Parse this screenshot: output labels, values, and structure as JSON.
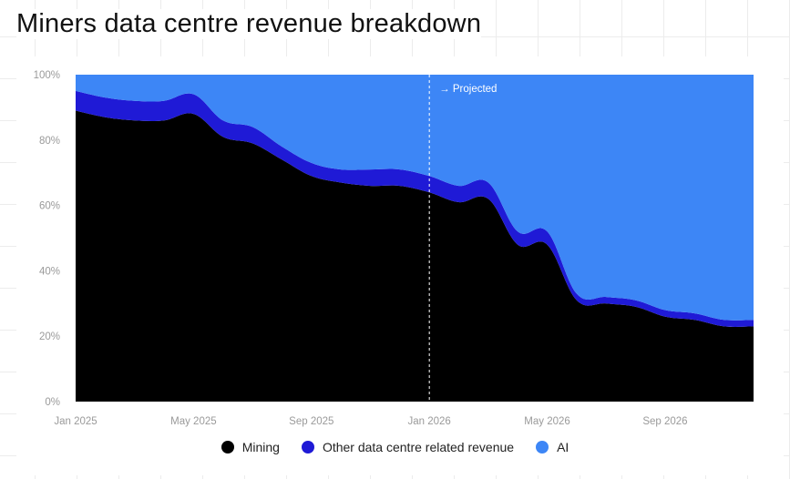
{
  "title": "Miners data centre revenue breakdown",
  "annotation": "→ Projected",
  "colors": {
    "mining": "#000000",
    "other": "#1f1ad6",
    "ai": "#3d86f6"
  },
  "chart_data": {
    "type": "area",
    "stacked": true,
    "normalized": true,
    "title": "Miners data centre revenue breakdown",
    "ylim": [
      0,
      100
    ],
    "y_ticks": [
      "0%",
      "20%",
      "40%",
      "60%",
      "80%",
      "100%"
    ],
    "x_ticks": [
      "Jan 2025",
      "May 2025",
      "Sep 2025",
      "Jan 2026",
      "May 2026",
      "Sep 2026"
    ],
    "projection_start": "Jan 2026",
    "x": [
      "2025-01",
      "2025-02",
      "2025-03",
      "2025-04",
      "2025-05",
      "2025-06",
      "2025-07",
      "2025-08",
      "2025-09",
      "2025-10",
      "2025-11",
      "2025-12",
      "2026-01",
      "2026-02",
      "2026-03",
      "2026-04",
      "2026-05",
      "2026-06",
      "2026-07",
      "2026-08",
      "2026-09",
      "2026-10",
      "2026-11",
      "2026-12"
    ],
    "series": [
      {
        "name": "Mining",
        "values": [
          89,
          87,
          86,
          86,
          88,
          81,
          79,
          74,
          69,
          67,
          66,
          66,
          64,
          61,
          62,
          48,
          48,
          31,
          30,
          29,
          26,
          25,
          23,
          23
        ]
      },
      {
        "name": "Other data centre related revenue",
        "values": [
          6,
          6,
          6,
          6,
          6,
          5,
          5,
          4,
          4,
          4,
          5,
          5,
          5,
          5,
          5,
          4,
          4,
          2,
          2,
          2,
          2,
          2,
          2,
          2
        ]
      },
      {
        "name": "AI",
        "values": [
          5,
          7,
          8,
          8,
          6,
          14,
          16,
          22,
          27,
          29,
          29,
          29,
          31,
          34,
          33,
          48,
          48,
          67,
          68,
          69,
          72,
          73,
          75,
          75
        ]
      }
    ],
    "legend_position": "bottom"
  }
}
